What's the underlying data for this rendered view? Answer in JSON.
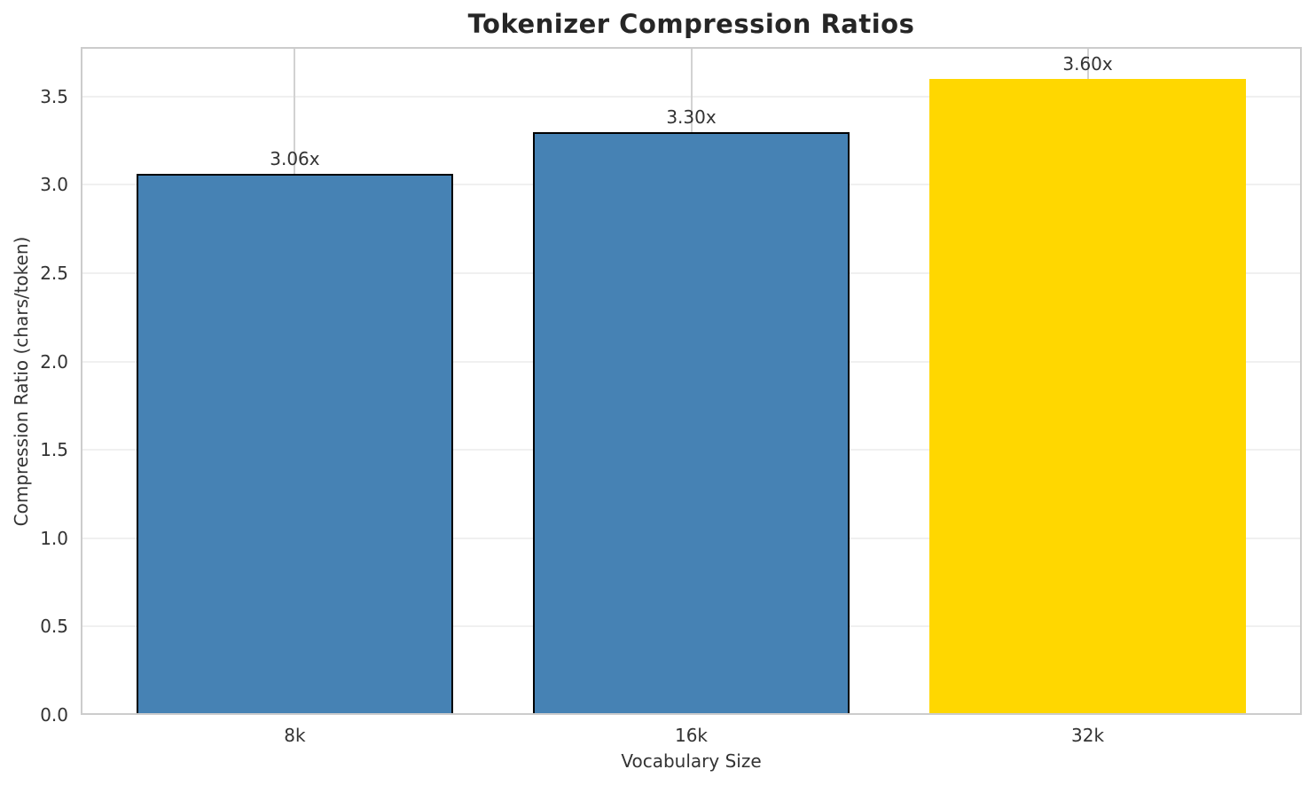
{
  "chart_data": {
    "type": "bar",
    "title": "Tokenizer Compression Ratios",
    "xlabel": "Vocabulary Size",
    "ylabel": "Compression Ratio (chars/token)",
    "categories": [
      "8k",
      "16k",
      "32k"
    ],
    "values": [
      3.06,
      3.3,
      3.6
    ],
    "bar_labels": [
      "3.06x",
      "3.30x",
      "3.60x"
    ],
    "bar_colors": [
      "#4682b4",
      "#4682b4",
      "#ffd700"
    ],
    "bar_edge_colors": [
      "#000000",
      "#000000",
      "#ffd700"
    ],
    "bar_width": 0.8,
    "xlim": [
      -0.54,
      2.54
    ],
    "ylim": [
      0,
      3.78
    ],
    "yticks": [
      0,
      0.5,
      1,
      1.5,
      2,
      2.5,
      3,
      3.5
    ],
    "ytick_labels": [
      "0.0",
      "0.5",
      "1.0",
      "1.5",
      "2.0",
      "2.5",
      "3.0",
      "3.5"
    ],
    "grid": "both",
    "legend_position": "none",
    "colors": {
      "horizontal_grid": "#f0f0f0",
      "vertical_grid": "#d2d2d2",
      "spine": "#cccccc",
      "tick_text": "#333333",
      "title_text": "#262626",
      "background": "#ffffff"
    }
  }
}
